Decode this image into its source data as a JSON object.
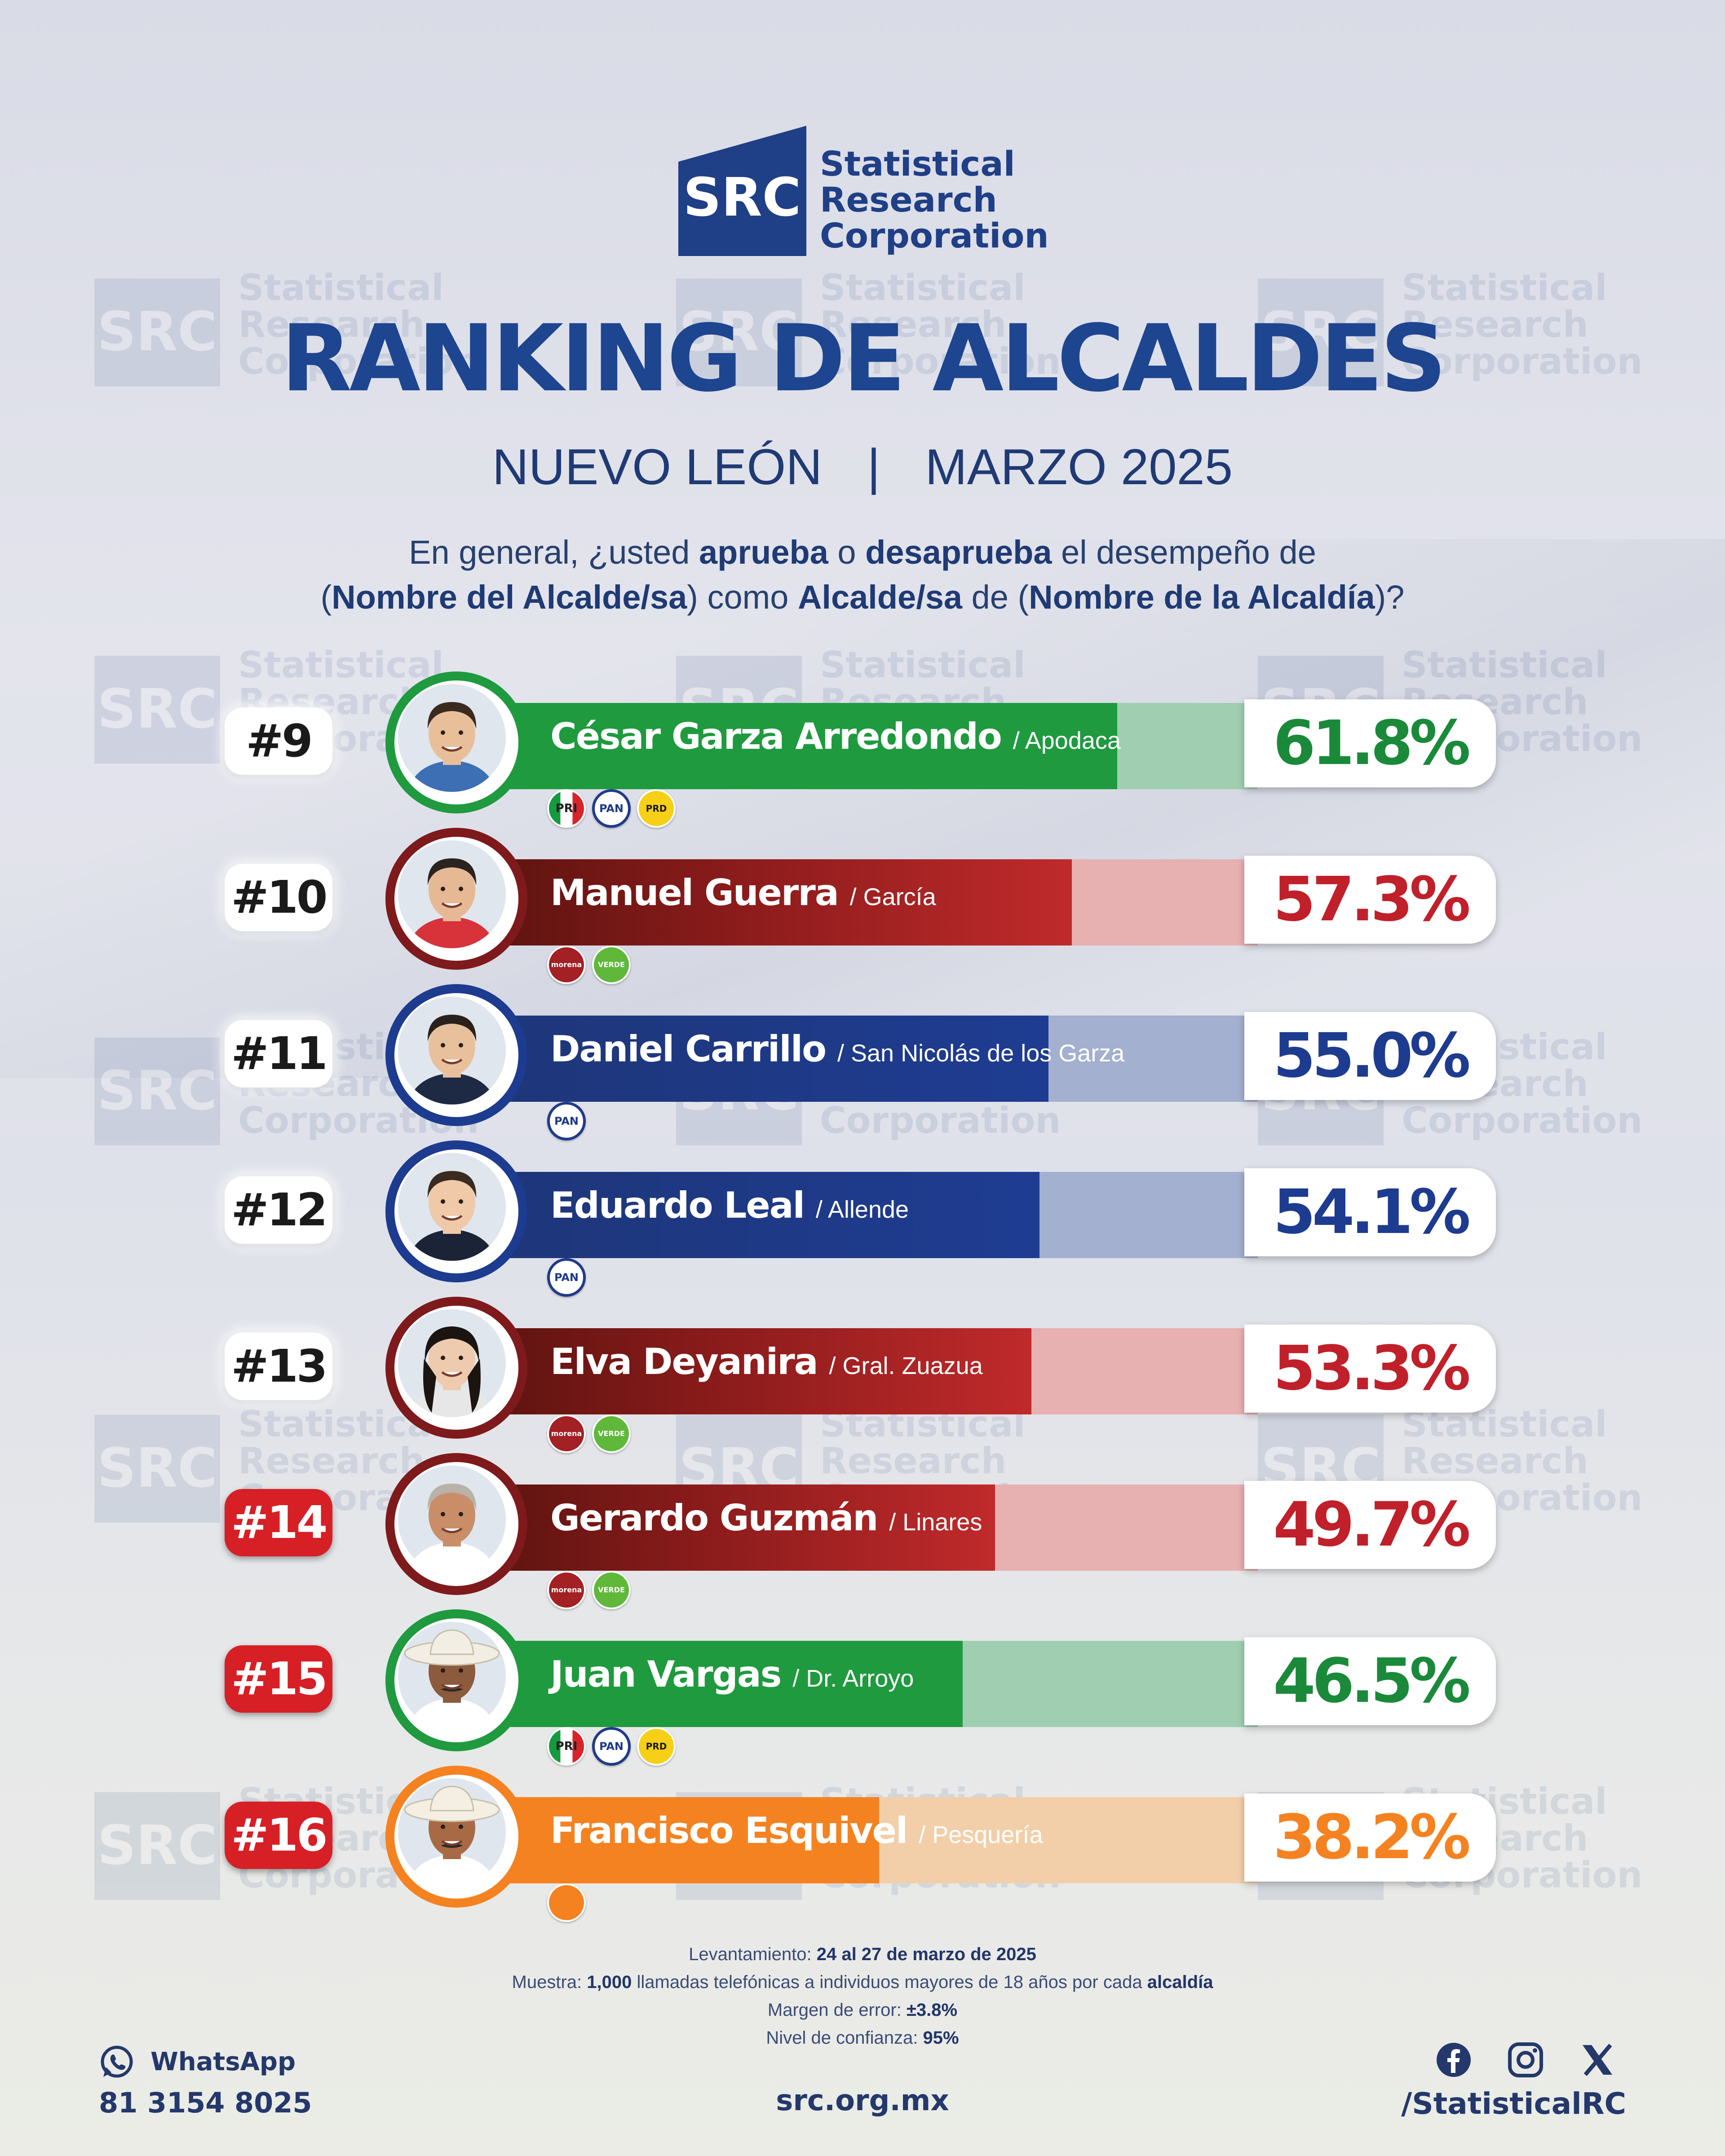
{
  "brand": {
    "logo_mark": "SRC",
    "logo_line1": "Statistical",
    "logo_line2": "Research",
    "logo_line3": "Corporation"
  },
  "header": {
    "title": "RANKING DE ALCALDES",
    "state": "NUEVO LEÓN",
    "separator": "|",
    "period": "MARZO 2025"
  },
  "question": {
    "p1": "En general, ¿usted ",
    "b1": "aprueba",
    "p2": " o ",
    "b2": "desaprueba",
    "p3": " el desempeño de",
    "p4": "(",
    "b3": "Nombre del Alcalde/sa",
    "p5": ") como ",
    "b4": "Alcalde/sa",
    "p6": " de (",
    "b5": "Nombre de la Alcaldía",
    "p7": ")?"
  },
  "chart_data": {
    "type": "bar",
    "title": "RANKING DE ALCALDES",
    "value_unit": "%",
    "xlim": [
      0,
      100
    ],
    "rows": [
      {
        "rank": "#9",
        "name": "César Garza Arredondo",
        "municipality": "/ Apodaca",
        "value": 61.8,
        "label": "61.8%",
        "parties": [
          "PRI",
          "PAN",
          "PRD"
        ],
        "color": "#1f9a3f",
        "rest_color": "#9fcfb0",
        "pct_color": "#1a8a3a",
        "rank_style": "normal"
      },
      {
        "rank": "#10",
        "name": "Manuel Guerra",
        "municipality": "/ García",
        "value": 57.3,
        "label": "57.3%",
        "parties": [
          "morena",
          "VERDE"
        ],
        "color": "#b21f24",
        "rest_color": "#e7b0b1",
        "pct_color": "#c0202a",
        "rank_style": "normal"
      },
      {
        "rank": "#11",
        "name": "Daniel Carrillo",
        "municipality": "/ San Nicolás de los Garza",
        "value": 55.0,
        "label": "55.0%",
        "parties": [
          "PAN"
        ],
        "color": "#1d3b8f",
        "rest_color": "#a3b0cf",
        "pct_color": "#1d3b8f",
        "rank_style": "normal"
      },
      {
        "rank": "#12",
        "name": "Eduardo Leal",
        "municipality": "/ Allende",
        "value": 54.1,
        "label": "54.1%",
        "parties": [
          "PAN"
        ],
        "color": "#1d3b8f",
        "rest_color": "#a3b0cf",
        "pct_color": "#1d3b8f",
        "rank_style": "normal"
      },
      {
        "rank": "#13",
        "name": "Elva Deyanira",
        "municipality": "/ Gral. Zuazua",
        "value": 53.3,
        "label": "53.3%",
        "parties": [
          "morena",
          "VERDE"
        ],
        "color": "#b21f24",
        "rest_color": "#e7b0b1",
        "pct_color": "#c0202a",
        "rank_style": "normal"
      },
      {
        "rank": "#14",
        "name": "Gerardo Guzmán",
        "municipality": "/ Linares",
        "value": 49.7,
        "label": "49.7%",
        "parties": [
          "morena",
          "VERDE"
        ],
        "color": "#b21f24",
        "rest_color": "#e7b0b1",
        "pct_color": "#c0202a",
        "rank_style": "bad"
      },
      {
        "rank": "#15",
        "name": "Juan Vargas",
        "municipality": "/ Dr. Arroyo",
        "value": 46.5,
        "label": "46.5%",
        "parties": [
          "PRI",
          "PAN",
          "PRD"
        ],
        "color": "#1f9a3f",
        "rest_color": "#9fcfb0",
        "pct_color": "#1a8a3a",
        "rank_style": "bad"
      },
      {
        "rank": "#16",
        "name": "Francisco Esquivel",
        "municipality": "/ Pesquería",
        "value": 38.2,
        "label": "38.2%",
        "parties": [
          "MC"
        ],
        "color": "#f58220",
        "rest_color": "#f2cfa9",
        "pct_color": "#f58220",
        "rank_style": "bad"
      }
    ]
  },
  "methodology": {
    "l1_label": "Levantamiento: ",
    "l1_value": "24 al 27 de marzo de 2025",
    "l2_label": "Muestra: ",
    "l2_value": "1,000",
    "l2_mid": " llamadas telefónicas a individuos mayores de 18 años por cada ",
    "l2_end": "alcaldía",
    "l3_label": "Margen de error: ",
    "l3_value": "±3.8%",
    "l4_label": "Nivel de confianza: ",
    "l4_value": "95%"
  },
  "footer": {
    "whatsapp_label": "WhatsApp",
    "phone": "81 3154 8025",
    "website": "src.org.mx",
    "social_handle": "/StatisticalRC",
    "social_icons": [
      "facebook-icon",
      "instagram-icon",
      "x-icon"
    ]
  }
}
